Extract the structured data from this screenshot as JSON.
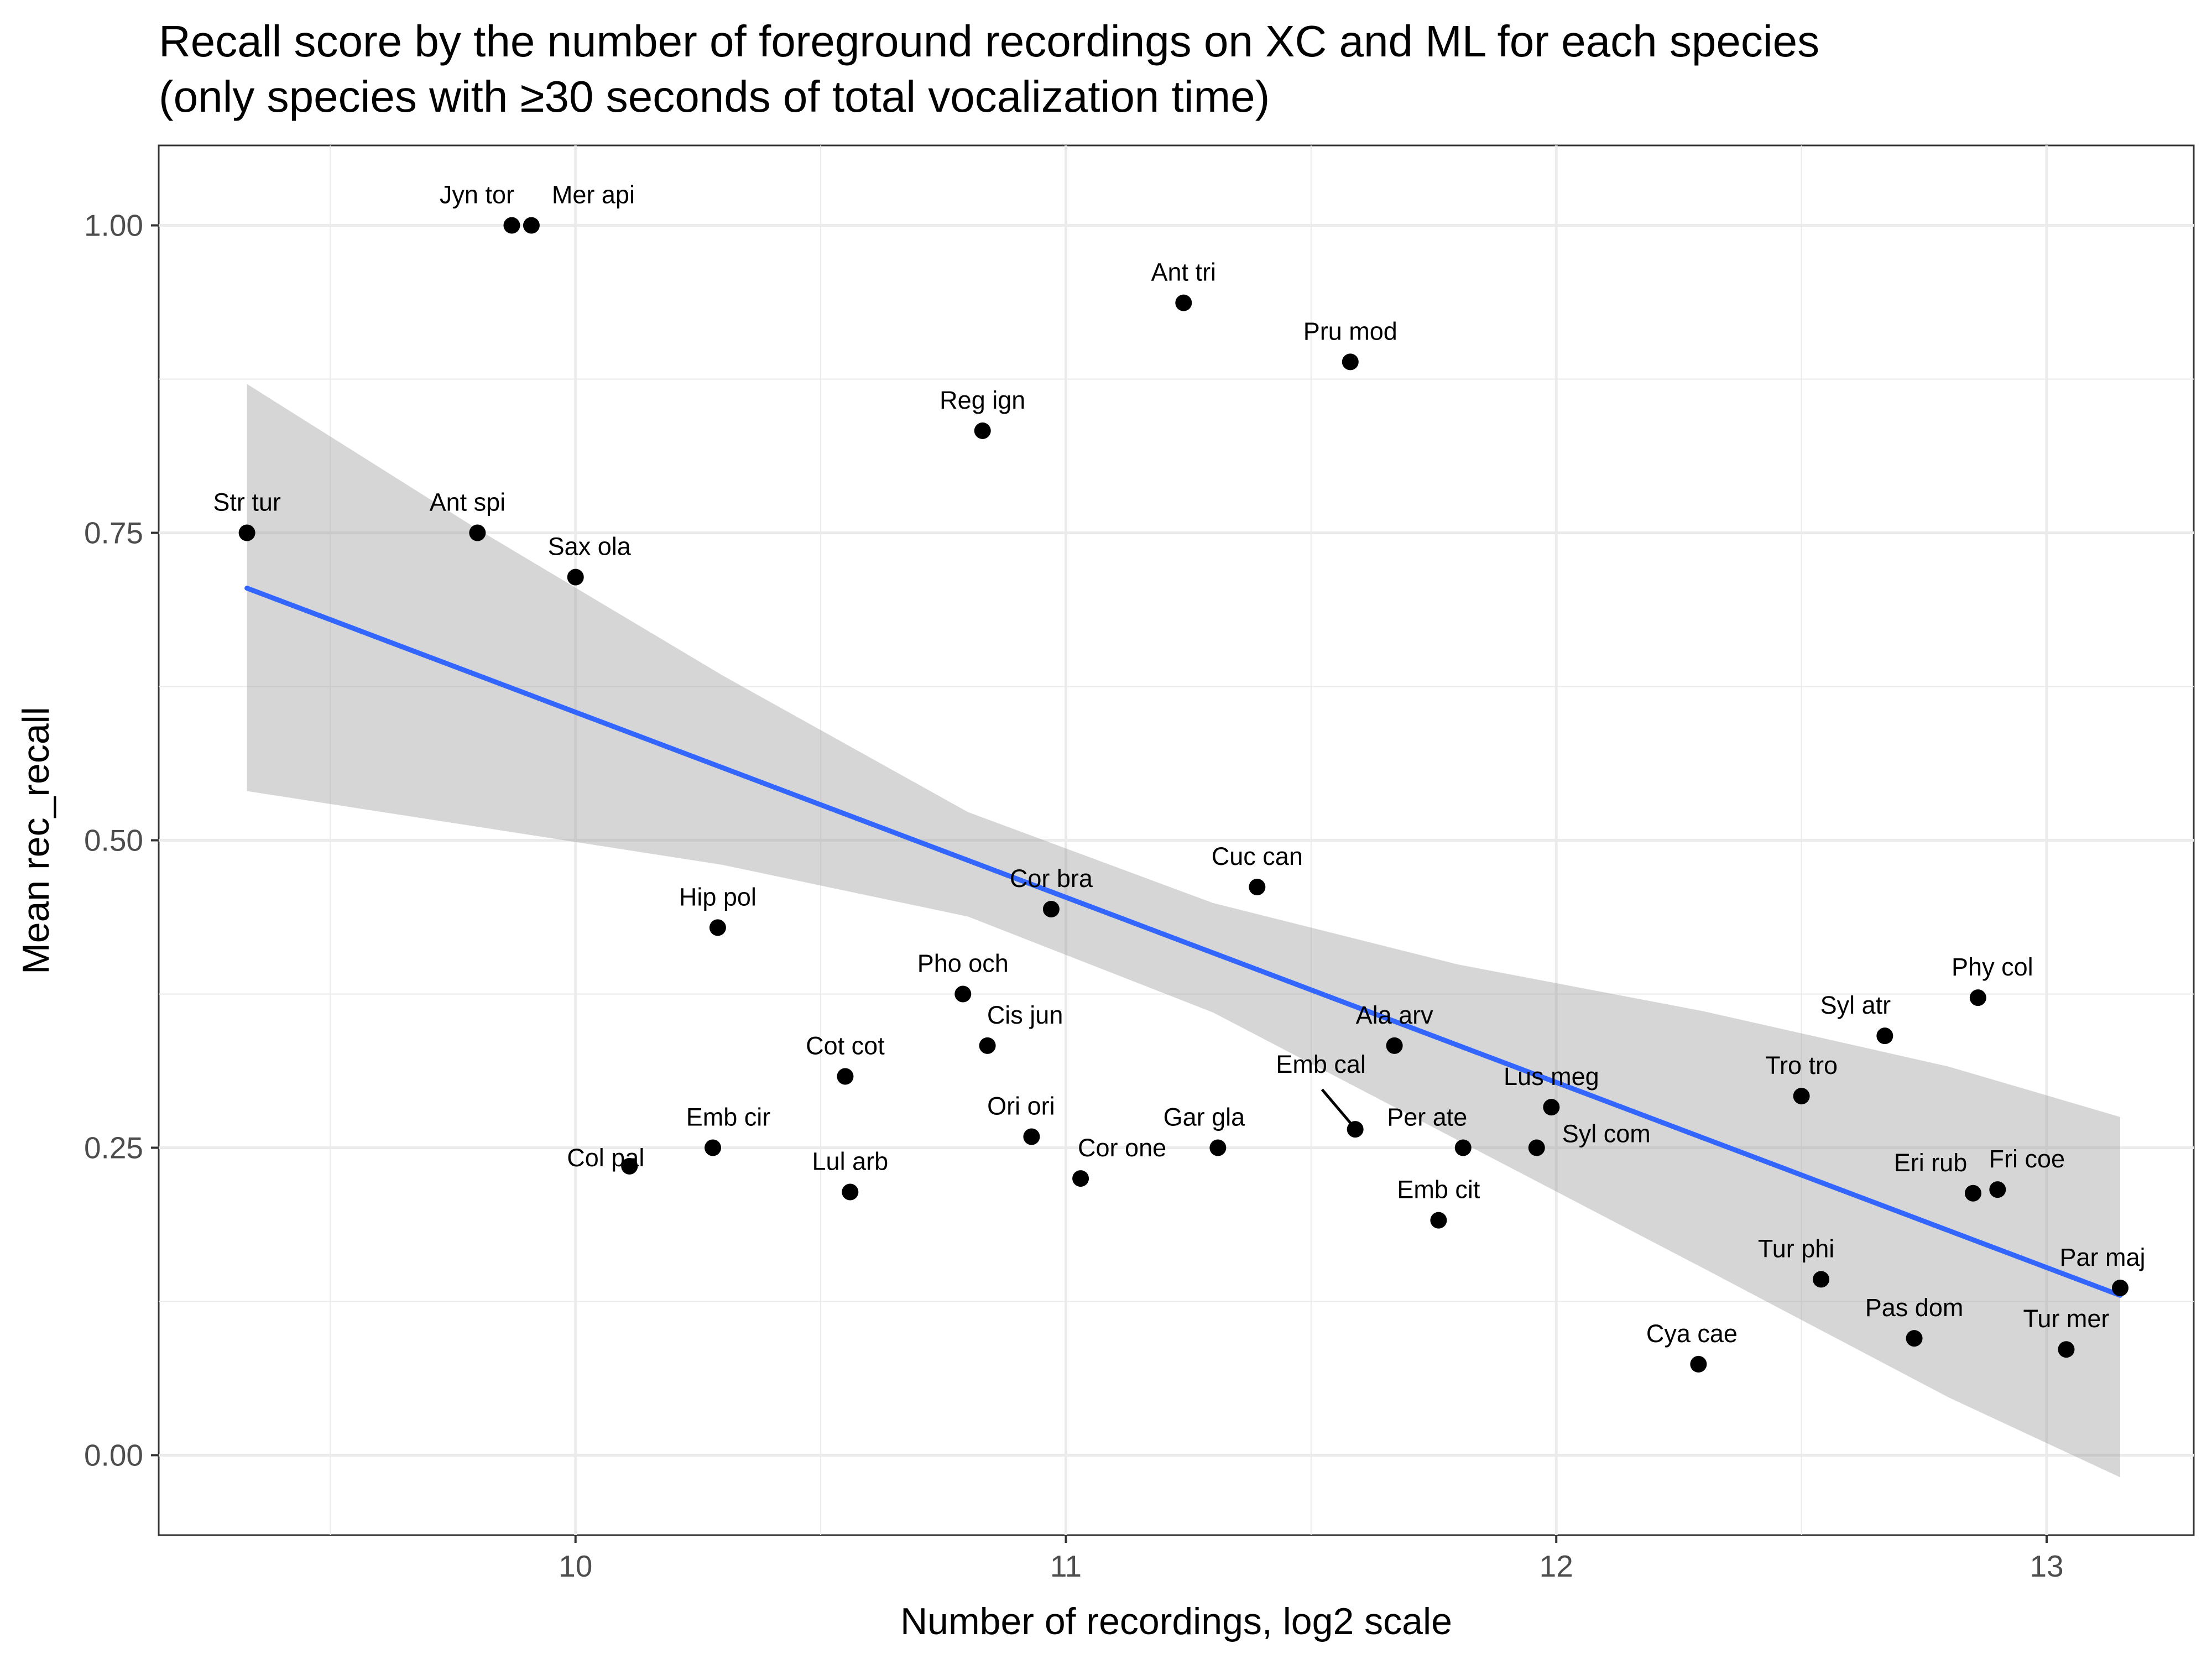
{
  "chart_data": {
    "type": "scatter",
    "title": "Recall score by the number of foreground recordings on XC and ML for each species",
    "subtitle": "(only species with ≥30 seconds of total vocalization time)",
    "xlabel": "Number of recordings, log2 scale",
    "ylabel": "Mean rec_recall",
    "xlim": [
      9.15,
      13.3
    ],
    "ylim": [
      -0.065,
      1.065
    ],
    "x_ticks": [
      10,
      11,
      12,
      13
    ],
    "x_tick_labels": [
      "10",
      "11",
      "12",
      "13"
    ],
    "y_ticks": [
      0,
      0.25,
      0.5,
      0.75,
      1.0
    ],
    "y_tick_labels": [
      "0.00",
      "0.25",
      "0.50",
      "0.75",
      "1.00"
    ],
    "grid": true,
    "point_color": "#000000",
    "line_color": "#3366ff",
    "band_color": "#999999",
    "points": [
      {
        "label": "Jyn tor",
        "x": 9.87,
        "y": 1.0
      },
      {
        "label": "Mer api",
        "x": 9.91,
        "y": 1.0
      },
      {
        "label": "Ant tri",
        "x": 11.24,
        "y": 0.937
      },
      {
        "label": "Pru mod",
        "x": 11.58,
        "y": 0.889
      },
      {
        "label": "Reg ign",
        "x": 10.83,
        "y": 0.833
      },
      {
        "label": "Str tur",
        "x": 9.33,
        "y": 0.75
      },
      {
        "label": "Ant spi",
        "x": 9.8,
        "y": 0.75
      },
      {
        "label": "Sax ola",
        "x": 10.0,
        "y": 0.714
      },
      {
        "label": "Cuc can",
        "x": 11.39,
        "y": 0.462
      },
      {
        "label": "Cor bra",
        "x": 10.97,
        "y": 0.444
      },
      {
        "label": "Hip pol",
        "x": 10.29,
        "y": 0.429
      },
      {
        "label": "Pho och",
        "x": 10.79,
        "y": 0.375
      },
      {
        "label": "Phy col",
        "x": 12.86,
        "y": 0.372
      },
      {
        "label": "Syl atr",
        "x": 12.67,
        "y": 0.341
      },
      {
        "label": "Cis jun",
        "x": 10.84,
        "y": 0.333
      },
      {
        "label": "Ala arv",
        "x": 11.67,
        "y": 0.333
      },
      {
        "label": "Cot cot",
        "x": 10.55,
        "y": 0.308
      },
      {
        "label": "Tro tro",
        "x": 12.5,
        "y": 0.292
      },
      {
        "label": "Lus meg",
        "x": 11.99,
        "y": 0.283
      },
      {
        "label": "Emb cal",
        "x": 11.59,
        "y": 0.265
      },
      {
        "label": "Ori ori",
        "x": 10.93,
        "y": 0.259
      },
      {
        "label": "Emb cir",
        "x": 10.28,
        "y": 0.25
      },
      {
        "label": "Gar gla",
        "x": 11.31,
        "y": 0.25
      },
      {
        "label": "Per ate",
        "x": 11.81,
        "y": 0.25
      },
      {
        "label": "Syl com",
        "x": 11.96,
        "y": 0.25
      },
      {
        "label": "Col pal",
        "x": 10.11,
        "y": 0.235
      },
      {
        "label": "Cor one",
        "x": 11.03,
        "y": 0.225
      },
      {
        "label": "Fri coe",
        "x": 12.9,
        "y": 0.216
      },
      {
        "label": "Lul arb",
        "x": 10.56,
        "y": 0.214
      },
      {
        "label": "Eri rub",
        "x": 12.85,
        "y": 0.213
      },
      {
        "label": "Emb cit",
        "x": 11.76,
        "y": 0.191
      },
      {
        "label": "Tur phi",
        "x": 12.54,
        "y": 0.143
      },
      {
        "label": "Par maj",
        "x": 13.15,
        "y": 0.136
      },
      {
        "label": "Pas dom",
        "x": 12.73,
        "y": 0.095
      },
      {
        "label": "Tur mer",
        "x": 13.04,
        "y": 0.086
      },
      {
        "label": "Cya cae",
        "x": 12.29,
        "y": 0.074
      }
    ],
    "trend": {
      "x": [
        9.33,
        13.15
      ],
      "y": [
        0.705,
        0.13
      ]
    },
    "band": {
      "x": [
        9.33,
        9.8,
        10.3,
        10.8,
        11.3,
        11.8,
        12.3,
        12.8,
        13.15
      ],
      "upper": [
        0.871,
        0.753,
        0.634,
        0.523,
        0.449,
        0.399,
        0.361,
        0.316,
        0.275
      ],
      "lower": [
        0.54,
        0.511,
        0.48,
        0.438,
        0.36,
        0.256,
        0.152,
        0.047,
        -0.018
      ]
    }
  }
}
